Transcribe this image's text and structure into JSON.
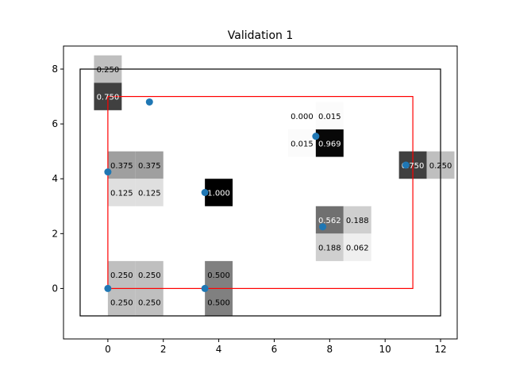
{
  "chart_data": {
    "type": "heatmap",
    "title": "Validation 1",
    "xlabel": "",
    "ylabel": "",
    "xlim": [
      -1.6,
      12.6
    ],
    "ylim": [
      -1.84,
      8.84
    ],
    "xticks": [
      0,
      2,
      4,
      6,
      8,
      10,
      12
    ],
    "yticks": [
      0,
      2,
      4,
      6,
      8
    ],
    "grid": false,
    "legend": "none",
    "cells": [
      {
        "x": 0,
        "y": 8,
        "value": 0.25,
        "label": "0.250"
      },
      {
        "x": 0,
        "y": 7,
        "value": 0.75,
        "label": "0.750"
      },
      {
        "x": 7,
        "y": 6.3,
        "value": 0.0,
        "label": "0.000"
      },
      {
        "x": 8,
        "y": 6.3,
        "value": 0.015,
        "label": "0.015"
      },
      {
        "x": 7,
        "y": 5.3,
        "value": 0.015,
        "label": "0.015"
      },
      {
        "x": 8,
        "y": 5.3,
        "value": 0.969,
        "label": "0.969"
      },
      {
        "x": 0.5,
        "y": 4.5,
        "value": 0.375,
        "label": "0.375"
      },
      {
        "x": 1.5,
        "y": 4.5,
        "value": 0.375,
        "label": "0.375"
      },
      {
        "x": 0.5,
        "y": 3.5,
        "value": 0.125,
        "label": "0.125"
      },
      {
        "x": 1.5,
        "y": 3.5,
        "value": 0.125,
        "label": "0.125"
      },
      {
        "x": 4,
        "y": 3.5,
        "value": 1.0,
        "label": "1.000"
      },
      {
        "x": 11,
        "y": 4.5,
        "value": 0.75,
        "label": "0.750"
      },
      {
        "x": 12,
        "y": 4.5,
        "value": 0.25,
        "label": "0.250"
      },
      {
        "x": 8,
        "y": 2.5,
        "value": 0.562,
        "label": "0.562"
      },
      {
        "x": 9,
        "y": 2.5,
        "value": 0.188,
        "label": "0.188"
      },
      {
        "x": 8,
        "y": 1.5,
        "value": 0.188,
        "label": "0.188"
      },
      {
        "x": 9,
        "y": 1.5,
        "value": 0.062,
        "label": "0.062"
      },
      {
        "x": 0.5,
        "y": 0.5,
        "value": 0.25,
        "label": "0.250"
      },
      {
        "x": 1.5,
        "y": 0.5,
        "value": 0.25,
        "label": "0.250"
      },
      {
        "x": 0.5,
        "y": -0.5,
        "value": 0.25,
        "label": "0.250"
      },
      {
        "x": 1.5,
        "y": -0.5,
        "value": 0.25,
        "label": "0.250"
      },
      {
        "x": 4,
        "y": 0.5,
        "value": 0.5,
        "label": "0.500"
      },
      {
        "x": 4,
        "y": -0.5,
        "value": 0.5,
        "label": "0.500"
      }
    ],
    "points": [
      {
        "x": 1.5,
        "y": 6.8
      },
      {
        "x": 7.5,
        "y": 5.55
      },
      {
        "x": 0,
        "y": 4.25
      },
      {
        "x": 3.5,
        "y": 3.5
      },
      {
        "x": 10.75,
        "y": 4.5
      },
      {
        "x": 7.75,
        "y": 2.25
      },
      {
        "x": 0,
        "y": 0
      },
      {
        "x": 3.5,
        "y": 0
      }
    ],
    "outer_rectangle": {
      "x0": -1,
      "y0": -1,
      "x1": 12,
      "y1": 8
    },
    "inner_rectangle": {
      "x0": 0,
      "y0": 0,
      "x1": 11,
      "y1": 7
    },
    "colors": {
      "point": "#1f77b4",
      "inner_rectangle": "#ff0000",
      "outer_rectangle": "#000000"
    }
  }
}
